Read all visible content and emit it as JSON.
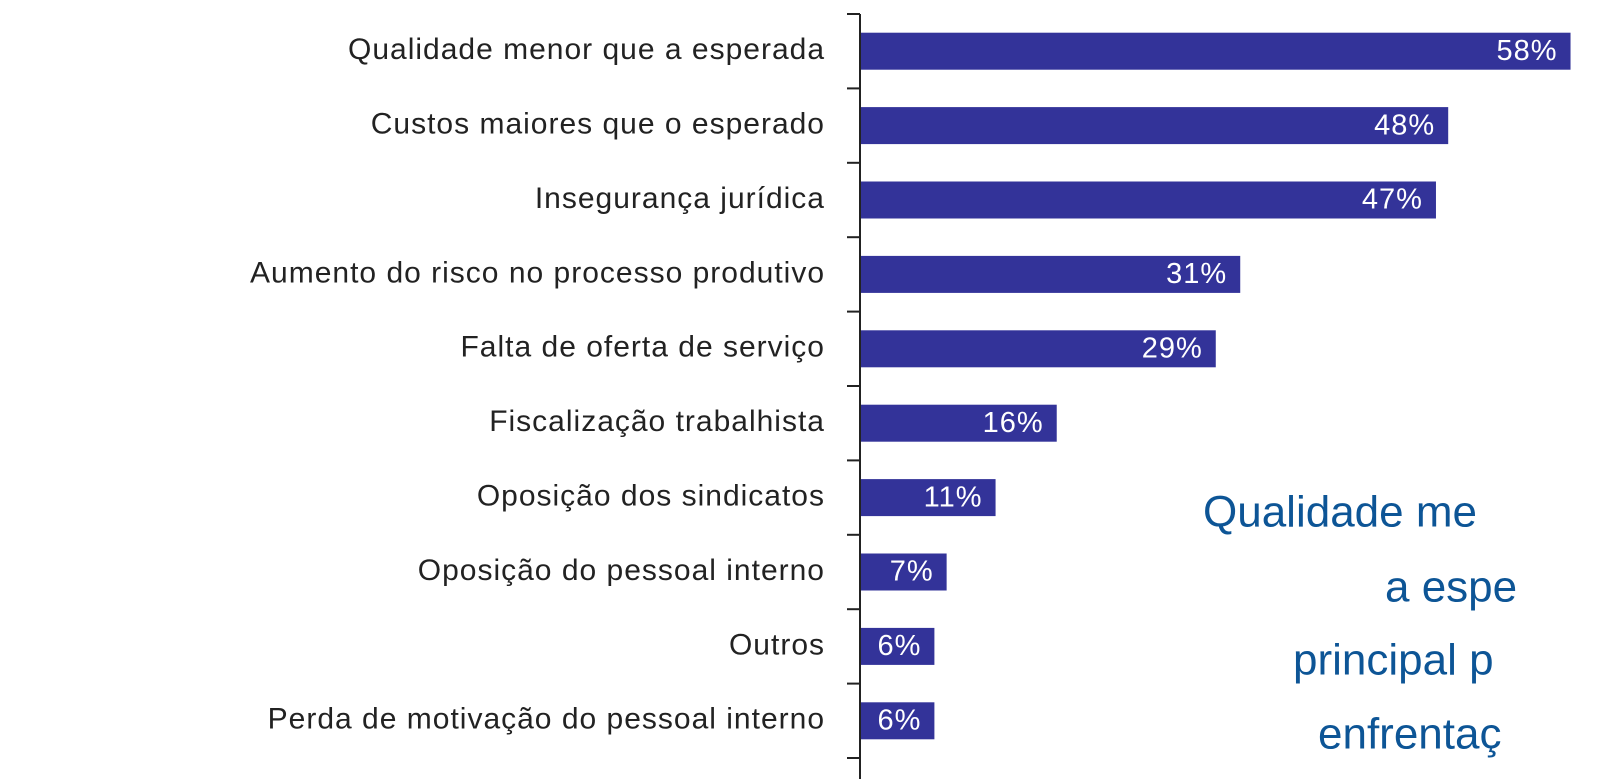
{
  "chart_data": {
    "type": "bar",
    "orientation": "horizontal",
    "categories": [
      "Qualidade menor que a esperada",
      "Custos maiores que o esperado",
      "Insegurança jurídica",
      "Aumento do risco no processo produtivo",
      "Falta de oferta de serviço",
      "Fiscalização trabalhista",
      "Oposição dos sindicatos",
      "Oposição do pessoal interno",
      "Outros",
      "Perda de motivação do pessoal interno"
    ],
    "values": [
      58,
      48,
      47,
      31,
      29,
      16,
      11,
      7,
      6,
      6
    ],
    "value_labels": [
      "58%",
      "48%",
      "47%",
      "31%",
      "29%",
      "16%",
      "11%",
      "7%",
      "6%",
      "6%"
    ],
    "color": "#333399",
    "xlim": [
      0,
      60
    ],
    "annotation": [
      "Qualidade me",
      "a espe",
      "principal p",
      "enfrentaç"
    ]
  }
}
